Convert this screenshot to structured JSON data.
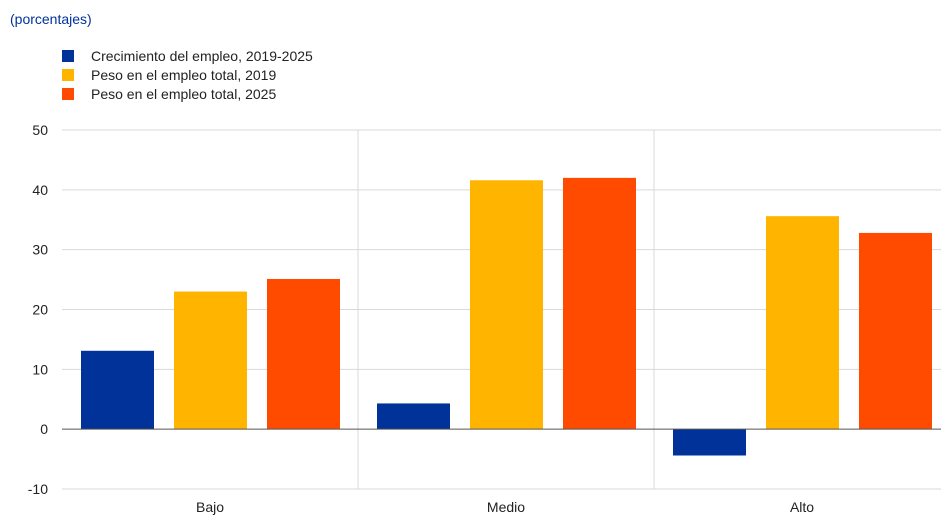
{
  "unit_label": "(porcentajes)",
  "colors": {
    "series": [
      "#003299",
      "#FFB400",
      "#FF4B00"
    ],
    "grid": "#d9d9d9",
    "axis": "#555555"
  },
  "chart_data": {
    "type": "bar",
    "title": "",
    "xlabel": "",
    "ylabel": "",
    "categories": [
      "Bajo",
      "Medio",
      "Alto"
    ],
    "series": [
      {
        "name": "Crecimiento del empleo, 2019-2025",
        "values": [
          13.1,
          4.3,
          -4.4
        ]
      },
      {
        "name": "Peso en el empleo total, 2019",
        "values": [
          23.0,
          41.6,
          35.6
        ]
      },
      {
        "name": "Peso en el empleo total, 2025",
        "values": [
          25.1,
          42.0,
          32.8
        ]
      }
    ],
    "ylim": [
      -10,
      50
    ],
    "yticks": [
      50,
      40,
      30,
      20,
      10,
      0,
      -10
    ],
    "grid": true,
    "legend_position": "top-left"
  }
}
